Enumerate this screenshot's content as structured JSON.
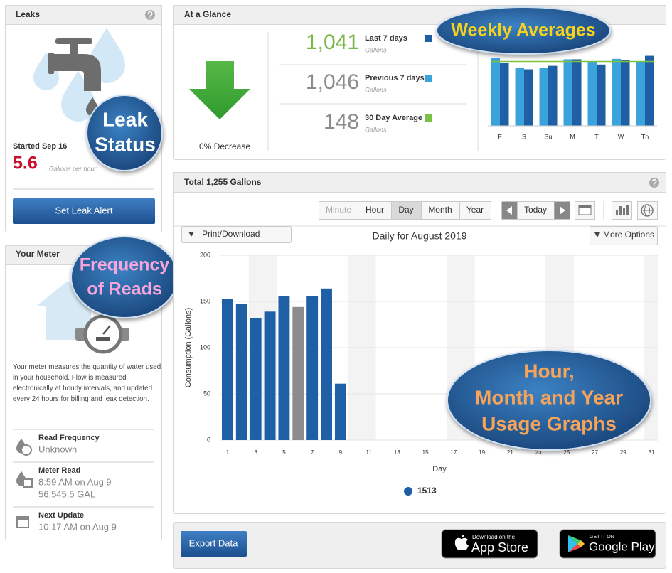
{
  "leaks": {
    "title": "Leaks",
    "started": "Started Sep 16",
    "rate": "5.6",
    "rate_unit": "Gallons per hour",
    "button": "Set Leak Alert",
    "callout": [
      "Leak",
      "Status"
    ]
  },
  "meter": {
    "title": "Your Meter",
    "callout": [
      "Frequency",
      "of Reads"
    ],
    "description": "Your meter measures the quantity of water used in your household. Flow is measured electronically at hourly intervals, and updated every 24 hours for billing and leak detection.",
    "rows": [
      {
        "label": "Read Frequency",
        "lines": [
          "Unknown"
        ]
      },
      {
        "label": "Meter Read",
        "lines": [
          "8:59 AM on Aug 9",
          "56,545.5 GAL"
        ]
      },
      {
        "label": "Next Update",
        "lines": [
          "10:17 AM on Aug 9"
        ]
      }
    ]
  },
  "glance": {
    "title": "At a Glance",
    "change": "0% Decrease",
    "rows": [
      {
        "value": "1,041",
        "unit": "Gallons"
      },
      {
        "value": "1,046",
        "unit": "Gallons"
      }
    ],
    "average_unit": "Gallons",
    "callout": "Weekly Averages"
  },
  "usage": {
    "title": "Total 1,255 Gallons",
    "intervals": [
      "Minute",
      "Hour",
      "Day",
      "Month",
      "Year"
    ],
    "today": "Today",
    "print": "Print/Download",
    "more": "More Options",
    "callout": [
      "Hour,",
      "Month and Year",
      "Usage Graphs"
    ]
  },
  "footer": {
    "export": "Export Data",
    "app_store": [
      "Download on the",
      "App Store"
    ],
    "google_play": [
      "GET IT ON",
      "Google Play"
    ]
  },
  "chart_data": [
    {
      "type": "bar",
      "categories": [
        "F",
        "S",
        "Su",
        "M",
        "T",
        "W",
        "Th"
      ],
      "series": [
        {
          "name": "Last 7 days",
          "color": "#1f5fa5",
          "values": [
            145,
            130,
            138,
            153,
            141,
            151,
            161
          ]
        },
        {
          "name": "Previous 7 days",
          "color": "#3ba3db",
          "values": [
            156,
            133,
            133,
            153,
            148,
            154,
            148
          ]
        }
      ],
      "average": {
        "name": "30 Day Average",
        "color": "#7cc242",
        "value": 148
      },
      "ylim": [
        0,
        175
      ]
    },
    {
      "type": "bar",
      "title": "Daily for August 2019",
      "ylabel": "Consumption (Gallons)",
      "xlabel": "Day",
      "categories": [
        1,
        null,
        3,
        null,
        5,
        null,
        7,
        null,
        9,
        null,
        11,
        null,
        13,
        null,
        15,
        null,
        17,
        null,
        19,
        null,
        21,
        null,
        23,
        null,
        25,
        null,
        27,
        null,
        29,
        null,
        31
      ],
      "series": [
        {
          "name": "1513",
          "color": "#1f5fa5",
          "values": [
            153,
            147,
            132,
            139,
            156,
            144,
            156,
            164,
            61,
            null,
            null,
            null,
            null,
            null,
            null,
            null,
            null,
            null,
            null,
            null,
            null,
            null,
            null,
            null,
            null,
            null,
            null,
            null,
            null,
            null,
            null
          ],
          "colors": [
            "#1f5fa5",
            "#1f5fa5",
            "#1f5fa5",
            "#1f5fa5",
            "#1f5fa5",
            "#8c8c8c",
            "#1f5fa5",
            "#1f5fa5",
            "#1f5fa5",
            null,
            null,
            null,
            null,
            null,
            null,
            null,
            null,
            null,
            null,
            null,
            null,
            null,
            null,
            null,
            null,
            null,
            null,
            null,
            null,
            null,
            null
          ]
        }
      ],
      "ylim": [
        0,
        200
      ],
      "yticks": [
        0,
        50,
        100,
        150,
        200
      ],
      "grid": true
    }
  ]
}
